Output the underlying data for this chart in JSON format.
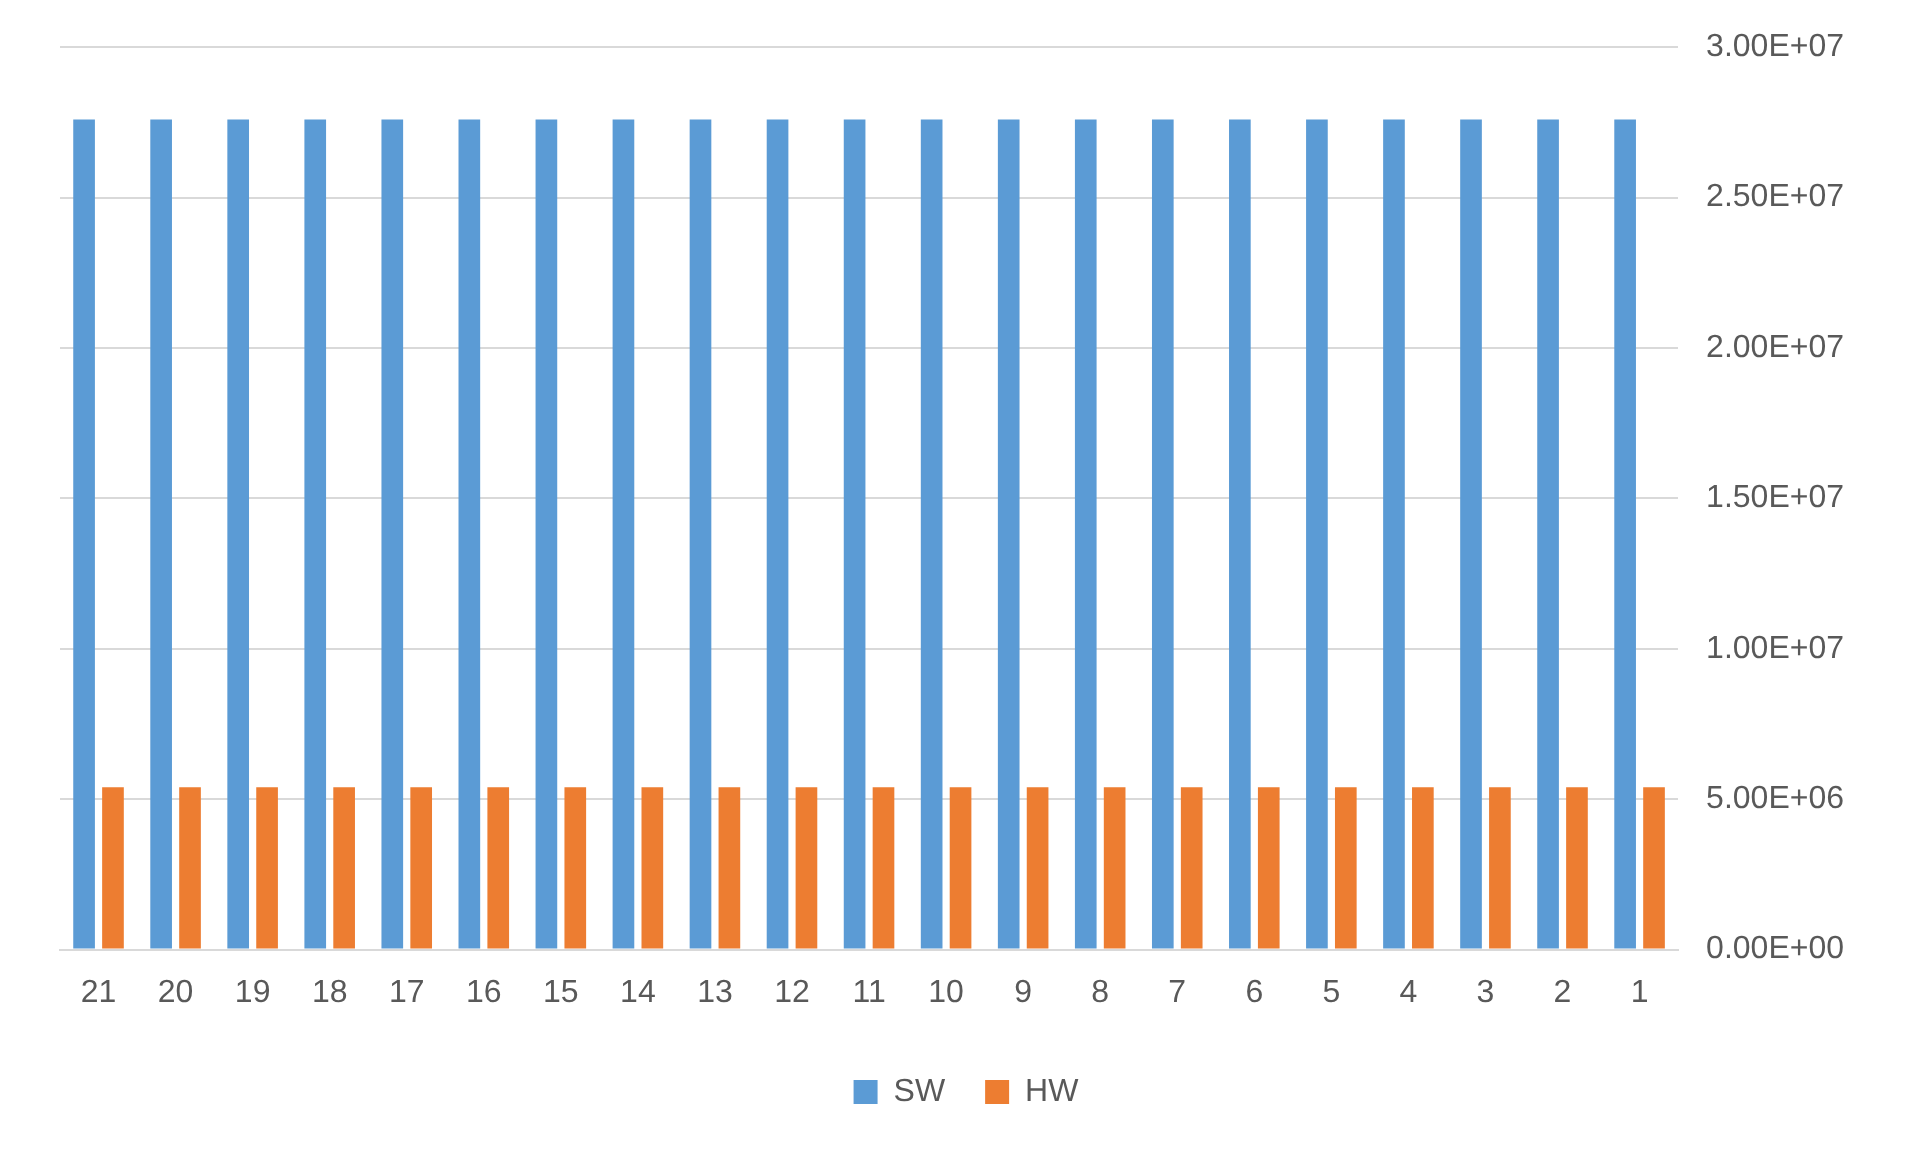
{
  "chart_data": {
    "type": "bar",
    "categories": [
      "21",
      "20",
      "19",
      "18",
      "17",
      "16",
      "15",
      "14",
      "13",
      "12",
      "11",
      "10",
      "9",
      "8",
      "7",
      "6",
      "5",
      "4",
      "3",
      "2",
      "1"
    ],
    "series": [
      {
        "name": "SW",
        "color": "#5b9bd5",
        "values": [
          27600000,
          27600000,
          27600000,
          27600000,
          27600000,
          27600000,
          27600000,
          27600000,
          27600000,
          27600000,
          27600000,
          27600000,
          27600000,
          27600000,
          27600000,
          27600000,
          27600000,
          27600000,
          27600000,
          27600000,
          27600000
        ]
      },
      {
        "name": "HW",
        "color": "#ed7d31",
        "values": [
          5400000,
          5400000,
          5400000,
          5400000,
          5400000,
          5400000,
          5400000,
          5400000,
          5400000,
          5400000,
          5400000,
          5400000,
          5400000,
          5400000,
          5400000,
          5400000,
          5400000,
          5400000,
          5400000,
          5400000,
          5400000
        ]
      }
    ],
    "ylim": [
      0,
      30000000
    ],
    "yticks": [
      {
        "value": 0,
        "label": "0.00E+00"
      },
      {
        "value": 5000000,
        "label": "5.00E+06"
      },
      {
        "value": 10000000,
        "label": "1.00E+07"
      },
      {
        "value": 15000000,
        "label": "1.50E+07"
      },
      {
        "value": 20000000,
        "label": "2.00E+07"
      },
      {
        "value": 25000000,
        "label": "2.50E+07"
      },
      {
        "value": 30000000,
        "label": "3.00E+07"
      }
    ],
    "grid": "y",
    "legend": "bottom"
  }
}
